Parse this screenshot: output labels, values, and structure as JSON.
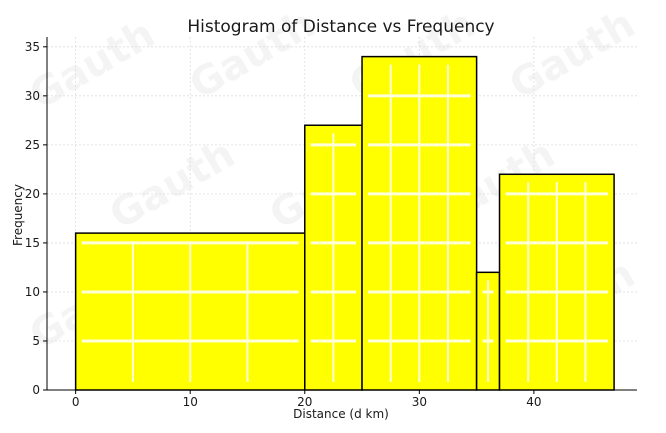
{
  "chart_data": {
    "type": "bar",
    "title": "Histogram of Distance vs Frequency",
    "xlabel": "Distance (d km)",
    "ylabel": "Frequency",
    "xlim": [
      -2.5,
      49
    ],
    "ylim": [
      0,
      36
    ],
    "x_ticks": [
      0,
      10,
      20,
      30,
      40
    ],
    "y_ticks": [
      0,
      5,
      10,
      15,
      20,
      25,
      30,
      35
    ],
    "grid": true,
    "bins": [
      {
        "start": 0,
        "end": 20,
        "value": 16
      },
      {
        "start": 20,
        "end": 25,
        "value": 27
      },
      {
        "start": 25,
        "end": 35,
        "value": 34
      },
      {
        "start": 35,
        "end": 37,
        "value": 12
      },
      {
        "start": 37,
        "end": 47,
        "value": 22
      }
    ],
    "bar_color": "#ffff00",
    "edge_color": "#000000",
    "watermark": "Gauth"
  }
}
